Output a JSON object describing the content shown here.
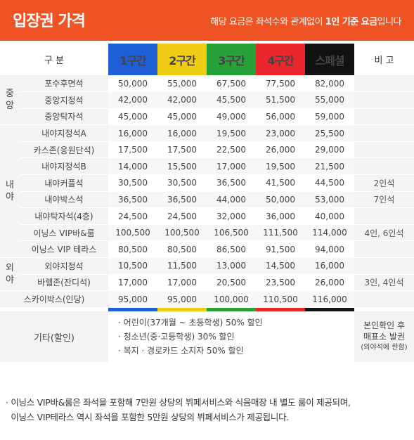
{
  "header": {
    "title": "입장권 가격",
    "note_prefix": "해당 요금은 좌석수와 관계없이 ",
    "note_bold": "1인 기준 요금",
    "note_suffix": "입니다"
  },
  "table": {
    "col_label": "구 분",
    "zones": [
      "1구간",
      "2구간",
      "3구간",
      "4구간",
      "스페셜"
    ],
    "note_label": "비 고",
    "groups": {
      "center": "중\n앙",
      "infield": "내\n야",
      "outfield": "외\n야"
    },
    "rows": [
      {
        "name": "포수후면석",
        "values": [
          "50,000",
          "55,000",
          "67,500",
          "77,500",
          "82,000"
        ],
        "note": ""
      },
      {
        "name": "중앙지정석",
        "values": [
          "42,000",
          "42,000",
          "45,500",
          "51,500",
          "55,000"
        ],
        "note": ""
      },
      {
        "name": "중앙탁자석",
        "values": [
          "45,000",
          "45,000",
          "49,000",
          "56,000",
          "59,000"
        ],
        "note": ""
      },
      {
        "name": "내야지정석A",
        "values": [
          "16,000",
          "16,000",
          "19,500",
          "23,000",
          "25,500"
        ],
        "note": ""
      },
      {
        "name": "카스존(응원단석)",
        "values": [
          "17,500",
          "17,500",
          "22,500",
          "26,000",
          "29,000"
        ],
        "note": ""
      },
      {
        "name": "내야지정석B",
        "values": [
          "14,000",
          "15,500",
          "17,000",
          "19,500",
          "21,500"
        ],
        "note": ""
      },
      {
        "name": "내야커플석",
        "values": [
          "30,500",
          "30,500",
          "36,500",
          "41,500",
          "44,500"
        ],
        "note": "2인석"
      },
      {
        "name": "내야박스석",
        "values": [
          "36,500",
          "36,500",
          "44,000",
          "50,000",
          "53,000"
        ],
        "note": "7인석"
      },
      {
        "name": "내야탁자석(4층)",
        "values": [
          "24,500",
          "24,500",
          "32,000",
          "36,000",
          "40,000"
        ],
        "note": ""
      },
      {
        "name": "이닝스 VIP바&룸",
        "values": [
          "100,500",
          "100,500",
          "106,500",
          "111,500",
          "114,000"
        ],
        "note": "4인, 6인석"
      },
      {
        "name": "이닝스 VIP 테라스",
        "values": [
          "80,500",
          "80,500",
          "86,500",
          "91,500",
          "94,000"
        ],
        "note": ""
      },
      {
        "name": "외야지정석",
        "values": [
          "10,500",
          "11,500",
          "13,000",
          "14,500",
          "16,000"
        ],
        "note": ""
      },
      {
        "name": "바렐존(잔디석)",
        "values": [
          "17,000",
          "17,000",
          "20,500",
          "23,500",
          "26,000"
        ],
        "note": "3인, 4인석"
      },
      {
        "name": "스카이박스(인당)",
        "values": [
          "95,000",
          "95,000",
          "100,000",
          "110,500",
          "116,000"
        ],
        "note": ""
      }
    ],
    "etc": {
      "label": "기타(할인)",
      "items": [
        "· 어린이(37개월 ~ 초등학생) 50% 할인",
        "· 청소년(중·고등학생) 30% 할인",
        "· 복지 · 경로카드 소지자 50% 할인"
      ],
      "note_line1": "본인확인 후",
      "note_line2": "매표소 발권",
      "note_line3": "(외야석에 한함)"
    }
  },
  "footnote": {
    "line1": "· 이닝스 VIP바&룸은 좌석을 포함해 7만원 상당의 뷔페서비스와 식음매장 내 별도 룸이 제공되며,",
    "line2": "  이닝스 VIP테라스 역시 좌석을 포함한 5만원 상당의 뷔페서비스가 제공됩니다."
  },
  "colors": {
    "header": "#f05323",
    "zone1": "#1e5fd8",
    "zone2": "#f0cc14",
    "zone3": "#27a23a",
    "zone4": "#e8262b",
    "special": "#111111"
  }
}
